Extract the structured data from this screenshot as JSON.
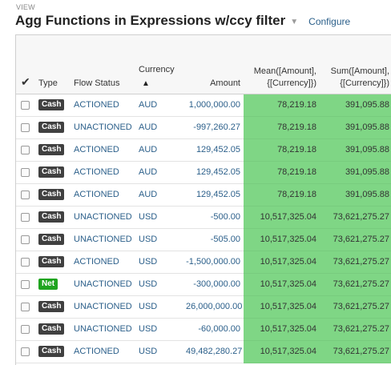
{
  "header": {
    "view_label": "VIEW",
    "title": "Agg Functions in Expressions w/ccy filter",
    "configure_label": "Configure"
  },
  "table": {
    "columns": {
      "type": "Type",
      "flow_status": "Flow Status",
      "currency": "Currency",
      "amount": "Amount",
      "mean_line1": "Mean([Amount],",
      "mean_line2": "{[Currency]})",
      "sum_line1": "Sum([Amount],",
      "sum_line2": "{[Currency]})"
    },
    "colors": {
      "cash_badge": "#404040",
      "net_badge": "#1fa41f",
      "highlight": "#7fd685",
      "link": "#2b5f8a"
    },
    "rows": [
      {
        "type": "Cash",
        "flow": "ACTIONED",
        "ccy": "AUD",
        "amount": "1,000,000.00",
        "mean": "78,219.18",
        "sum": "391,095.88"
      },
      {
        "type": "Cash",
        "flow": "UNACTIONED",
        "ccy": "AUD",
        "amount": "-997,260.27",
        "mean": "78,219.18",
        "sum": "391,095.88"
      },
      {
        "type": "Cash",
        "flow": "ACTIONED",
        "ccy": "AUD",
        "amount": "129,452.05",
        "mean": "78,219.18",
        "sum": "391,095.88"
      },
      {
        "type": "Cash",
        "flow": "ACTIONED",
        "ccy": "AUD",
        "amount": "129,452.05",
        "mean": "78,219.18",
        "sum": "391,095.88"
      },
      {
        "type": "Cash",
        "flow": "ACTIONED",
        "ccy": "AUD",
        "amount": "129,452.05",
        "mean": "78,219.18",
        "sum": "391,095.88"
      },
      {
        "type": "Cash",
        "flow": "UNACTIONED",
        "ccy": "USD",
        "amount": "-500.00",
        "mean": "10,517,325.04",
        "sum": "73,621,275.27"
      },
      {
        "type": "Cash",
        "flow": "UNACTIONED",
        "ccy": "USD",
        "amount": "-505.00",
        "mean": "10,517,325.04",
        "sum": "73,621,275.27"
      },
      {
        "type": "Cash",
        "flow": "ACTIONED",
        "ccy": "USD",
        "amount": "-1,500,000.00",
        "mean": "10,517,325.04",
        "sum": "73,621,275.27"
      },
      {
        "type": "Net",
        "flow": "UNACTIONED",
        "ccy": "USD",
        "amount": "-300,000.00",
        "mean": "10,517,325.04",
        "sum": "73,621,275.27"
      },
      {
        "type": "Cash",
        "flow": "UNACTIONED",
        "ccy": "USD",
        "amount": "26,000,000.00",
        "mean": "10,517,325.04",
        "sum": "73,621,275.27"
      },
      {
        "type": "Cash",
        "flow": "UNACTIONED",
        "ccy": "USD",
        "amount": "-60,000.00",
        "mean": "10,517,325.04",
        "sum": "73,621,275.27"
      },
      {
        "type": "Cash",
        "flow": "ACTIONED",
        "ccy": "USD",
        "amount": "49,482,280.27",
        "mean": "10,517,325.04",
        "sum": "73,621,275.27"
      }
    ]
  }
}
